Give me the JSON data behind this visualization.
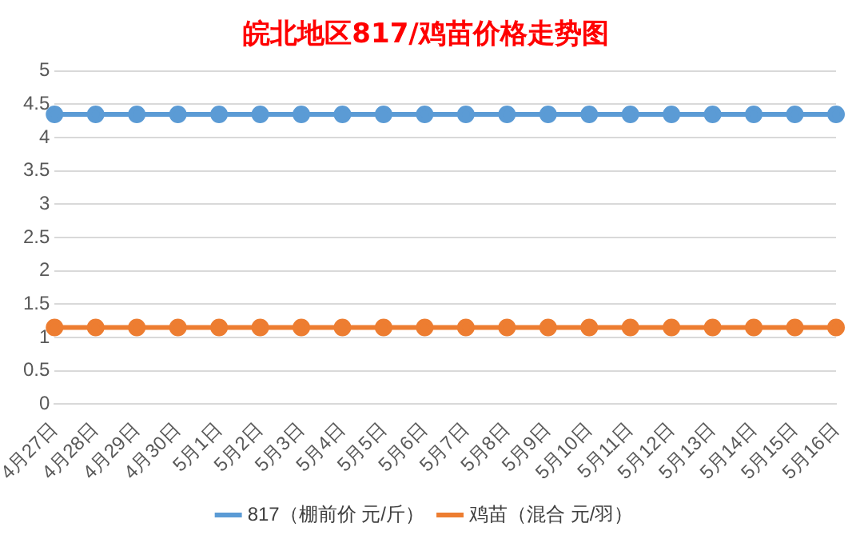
{
  "chart_data": {
    "type": "line",
    "title": "皖北地区817/鸡苗价格走势图",
    "categories": [
      "4月27日",
      "4月28日",
      "4月29日",
      "4月30日",
      "5月1日",
      "5月2日",
      "5月3日",
      "5月4日",
      "5月5日",
      "5月6日",
      "5月7日",
      "5月8日",
      "5月9日",
      "5月10日",
      "5月11日",
      "5月12日",
      "5月13日",
      "5月14日",
      "5月15日",
      "5月16日"
    ],
    "series": [
      {
        "name": "817（棚前价 元/斤）",
        "color": "#5b9bd5",
        "values": [
          4.35,
          4.35,
          4.35,
          4.35,
          4.35,
          4.35,
          4.35,
          4.35,
          4.35,
          4.35,
          4.35,
          4.35,
          4.35,
          4.35,
          4.35,
          4.35,
          4.35,
          4.35,
          4.35,
          4.35
        ]
      },
      {
        "name": "鸡苗（混合 元/羽）",
        "color": "#ed7d31",
        "values": [
          1.15,
          1.15,
          1.15,
          1.15,
          1.15,
          1.15,
          1.15,
          1.15,
          1.15,
          1.15,
          1.15,
          1.15,
          1.15,
          1.15,
          1.15,
          1.15,
          1.15,
          1.15,
          1.15,
          1.15
        ]
      }
    ],
    "ylim": [
      0,
      5
    ],
    "yticks": [
      0,
      0.5,
      1,
      1.5,
      2,
      2.5,
      3,
      3.5,
      4,
      4.5,
      5
    ],
    "grid": "y",
    "legend": "bottom",
    "marker": "circle",
    "line_style": "solid"
  }
}
